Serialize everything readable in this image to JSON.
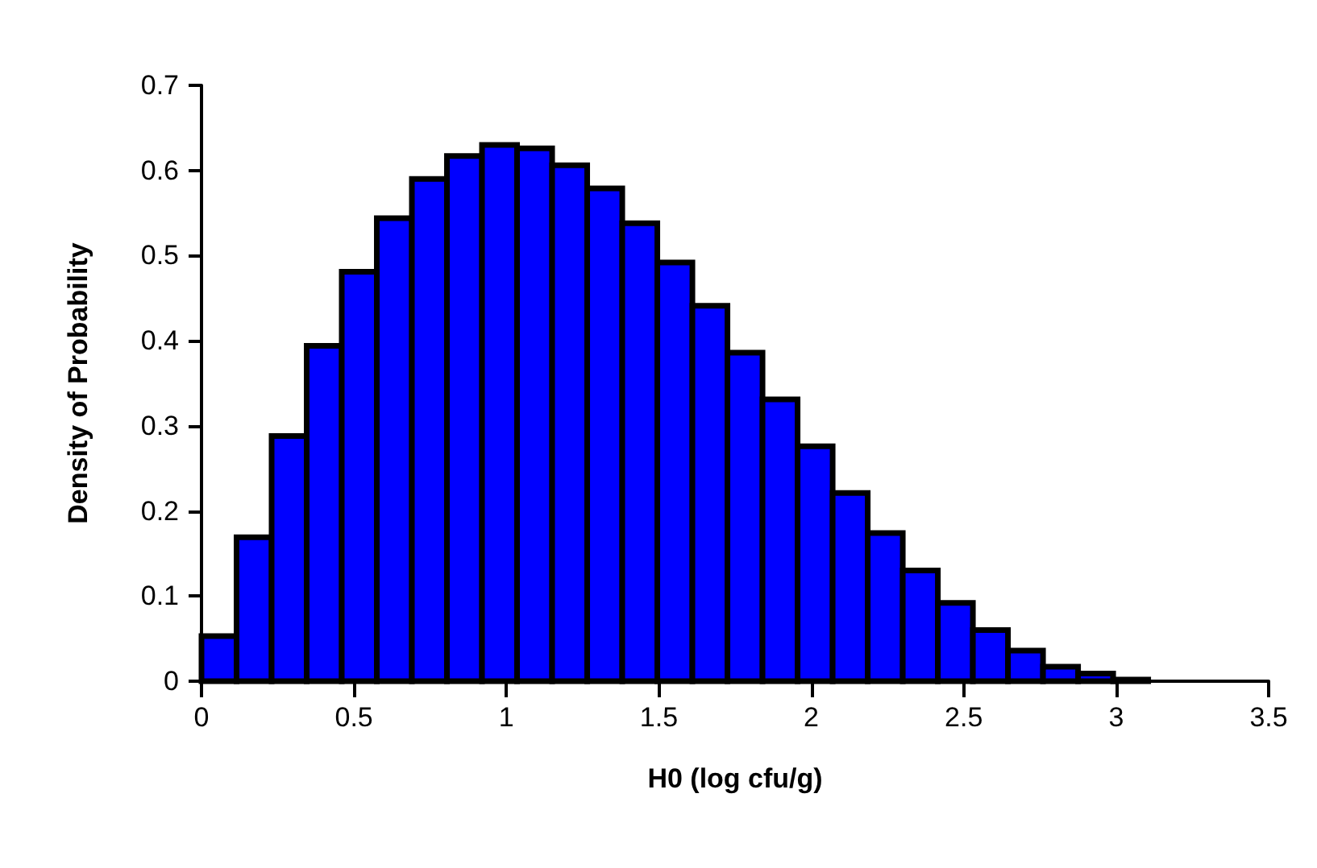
{
  "chart_data": {
    "type": "histogram",
    "xlabel": "H0 (log cfu/g)",
    "ylabel": "Density of Probability",
    "bins": [
      0,
      0.115,
      0.23,
      0.345,
      0.46,
      0.575,
      0.69,
      0.805,
      0.92,
      1.035,
      1.15,
      1.265,
      1.38,
      1.495,
      1.61,
      1.725,
      1.84,
      1.955,
      2.07,
      2.185,
      2.3,
      2.415,
      2.53,
      2.645,
      2.76,
      2.875,
      2.99,
      3.105
    ],
    "values": [
      0.053,
      0.169,
      0.288,
      0.394,
      0.481,
      0.544,
      0.59,
      0.617,
      0.63,
      0.626,
      0.606,
      0.579,
      0.538,
      0.492,
      0.441,
      0.386,
      0.331,
      0.276,
      0.221,
      0.174,
      0.13,
      0.092,
      0.06,
      0.036,
      0.017,
      0.009,
      0.002
    ],
    "color": "#0000ff",
    "xlim": [
      0,
      3.5
    ],
    "xticks": [
      0,
      0.5,
      1,
      1.5,
      2,
      2.5,
      3,
      3.5
    ],
    "ylim": [
      0,
      0.7
    ],
    "yticks": [
      0,
      0.1,
      0.2,
      0.3,
      0.4,
      0.5,
      0.6,
      0.7
    ],
    "grid": false
  }
}
